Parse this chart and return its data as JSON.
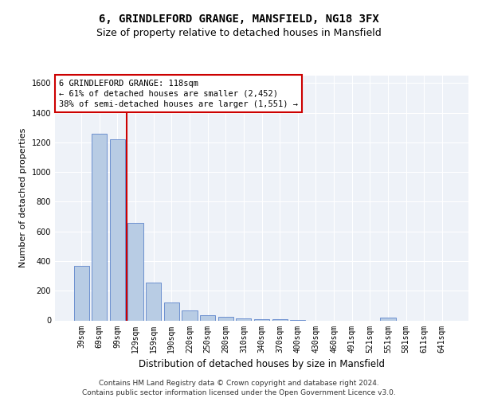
{
  "title": "6, GRINDLEFORD GRANGE, MANSFIELD, NG18 3FX",
  "subtitle": "Size of property relative to detached houses in Mansfield",
  "xlabel": "Distribution of detached houses by size in Mansfield",
  "ylabel": "Number of detached properties",
  "categories": [
    "39sqm",
    "69sqm",
    "99sqm",
    "129sqm",
    "159sqm",
    "190sqm",
    "220sqm",
    "250sqm",
    "280sqm",
    "310sqm",
    "340sqm",
    "370sqm",
    "400sqm",
    "430sqm",
    "460sqm",
    "491sqm",
    "521sqm",
    "551sqm",
    "581sqm",
    "611sqm",
    "641sqm"
  ],
  "values": [
    370,
    1260,
    1220,
    660,
    255,
    120,
    65,
    35,
    22,
    15,
    10,
    6,
    5,
    0,
    0,
    0,
    0,
    20,
    0,
    0,
    0
  ],
  "bar_color": "#b8cce4",
  "bar_edge_color": "#4472c4",
  "highlight_index": 2,
  "vline_color": "#cc0000",
  "ylim": [
    0,
    1650
  ],
  "yticks": [
    0,
    200,
    400,
    600,
    800,
    1000,
    1200,
    1400,
    1600
  ],
  "annotation_line1": "6 GRINDLEFORD GRANGE: 118sqm",
  "annotation_line2": "← 61% of detached houses are smaller (2,452)",
  "annotation_line3": "38% of semi-detached houses are larger (1,551) →",
  "annotation_box_color": "#cc0000",
  "footer_text": "Contains HM Land Registry data © Crown copyright and database right 2024.\nContains public sector information licensed under the Open Government Licence v3.0.",
  "bg_color": "#eef2f8",
  "grid_color": "#ffffff",
  "title_fontsize": 10,
  "subtitle_fontsize": 9,
  "ylabel_fontsize": 8,
  "xlabel_fontsize": 8.5,
  "tick_fontsize": 7,
  "annotation_fontsize": 7.5,
  "footer_fontsize": 6.5
}
